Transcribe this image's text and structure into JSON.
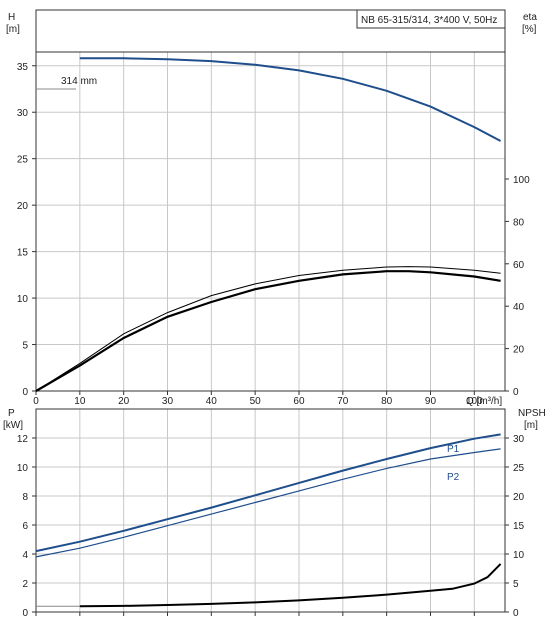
{
  "chart_data": [
    {
      "type": "line",
      "panel": "head-efficiency",
      "title": "NB 65-315/314, 3*400 V, 50Hz",
      "xlabel": "Q [m³/h]",
      "ylabel_left_name": "H",
      "ylabel_left_unit": "[m]",
      "ylabel_right_name": "eta",
      "ylabel_right_unit": "[%]",
      "xlim": [
        0,
        107
      ],
      "ylim_left": [
        0,
        41
      ],
      "ylim_right": [
        0,
        100
      ],
      "x_ticks": [
        "0",
        "10",
        "20",
        "30",
        "40",
        "50",
        "60",
        "70",
        "80",
        "90",
        "100"
      ],
      "y_left_ticks": [
        "0",
        "5",
        "10",
        "15",
        "20",
        "25",
        "30",
        "35"
      ],
      "y_right_ticks": [
        "0",
        "20",
        "40",
        "60",
        "80",
        "100"
      ],
      "grid": true,
      "annotation": "314 mm",
      "colors": {
        "head": "#1f4e8c",
        "efficiency": "#000000",
        "grid": "#c8c8c8"
      },
      "series": [
        {
          "name": "314 mm",
          "axis": "left",
          "x": [
            10,
            20,
            30,
            40,
            50,
            60,
            70,
            80,
            90,
            100,
            106
          ],
          "y": [
            35.8,
            35.8,
            35.7,
            35.5,
            35.1,
            34.5,
            33.6,
            32.3,
            30.6,
            28.4,
            26.9
          ]
        },
        {
          "axis": "right",
          "x": [
            0,
            10,
            20,
            30,
            40,
            50,
            60,
            70,
            80,
            85,
            90,
            100,
            106
          ],
          "y": [
            0,
            12,
            25,
            35,
            42,
            48,
            52,
            55,
            56.5,
            56.5,
            56,
            54,
            52
          ]
        },
        {
          "axis": "right",
          "x": [
            0,
            10,
            20,
            30,
            40,
            50,
            60,
            70,
            80,
            85,
            90,
            100,
            106
          ],
          "y": [
            0,
            13,
            27,
            37,
            45,
            50.5,
            54.5,
            57,
            58.5,
            58.7,
            58.5,
            57,
            55.5
          ]
        }
      ]
    },
    {
      "type": "line",
      "panel": "power-npsh",
      "xlabel": "",
      "ylabel_left_name": "P",
      "ylabel_left_unit": "[kW]",
      "ylabel_right_name": "NPSH",
      "ylabel_right_unit": "[m]",
      "xlim": [
        0,
        107
      ],
      "ylim_left": [
        0,
        14
      ],
      "ylim_right": [
        0,
        35
      ],
      "y_left_ticks": [
        "0",
        "2",
        "4",
        "6",
        "8",
        "10",
        "12"
      ],
      "y_right_ticks": [
        "0",
        "5",
        "10",
        "15",
        "20",
        "25",
        "30"
      ],
      "grid": true,
      "colors": {
        "p1": "#1f4e8c",
        "p2": "#1f4e8c",
        "npsh": "#000000"
      },
      "series": [
        {
          "name": "P1",
          "axis": "left",
          "x": [
            0,
            10,
            20,
            30,
            40,
            50,
            60,
            70,
            80,
            90,
            100,
            106
          ],
          "y": [
            4.2,
            4.85,
            5.6,
            6.4,
            7.2,
            8.05,
            8.9,
            9.75,
            10.55,
            11.3,
            11.95,
            12.25
          ]
        },
        {
          "name": "P2",
          "axis": "left",
          "x": [
            0,
            10,
            20,
            30,
            40,
            50,
            60,
            70,
            80,
            90,
            100,
            106
          ],
          "y": [
            3.8,
            4.4,
            5.15,
            5.95,
            6.75,
            7.55,
            8.35,
            9.15,
            9.9,
            10.55,
            11.0,
            11.25
          ]
        },
        {
          "axis": "right",
          "x": [
            10,
            20,
            30,
            40,
            50,
            60,
            70,
            80,
            90,
            95,
            100,
            103,
            106
          ],
          "y": [
            1.0,
            1.05,
            1.2,
            1.4,
            1.65,
            2.0,
            2.45,
            3.0,
            3.65,
            4.0,
            4.9,
            6.0,
            8.3
          ]
        }
      ]
    }
  ]
}
